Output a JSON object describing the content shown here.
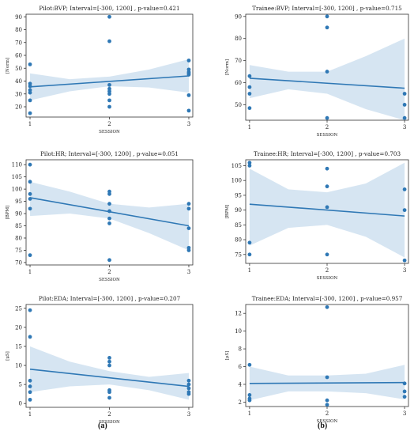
{
  "colors": {
    "line": "#2f78b5",
    "band": "#c8dcee",
    "point": "#2f78b5",
    "axis": "#333333"
  },
  "panel_labels": [
    "(a)",
    "(b)"
  ],
  "chart_data": [
    {
      "type": "scatter",
      "title": "Pilot:BVP; Interval=[-300, 1200] , p-value=0.421",
      "xlabel": "SESSION",
      "ylabel": "[Norm]",
      "xlim": [
        0.95,
        3.05
      ],
      "ylim": [
        12,
        92
      ],
      "xticks": [
        1,
        2,
        3
      ],
      "yticks": [
        20,
        30,
        40,
        50,
        60,
        70,
        80,
        90
      ],
      "points": [
        [
          1,
          53
        ],
        [
          1,
          38
        ],
        [
          1,
          36
        ],
        [
          1,
          33
        ],
        [
          1,
          31
        ],
        [
          1,
          25
        ],
        [
          1,
          15
        ],
        [
          2,
          90
        ],
        [
          2,
          71
        ],
        [
          2,
          37
        ],
        [
          2,
          34
        ],
        [
          2,
          32
        ],
        [
          2,
          30
        ],
        [
          2,
          25
        ],
        [
          2,
          20
        ],
        [
          3,
          56
        ],
        [
          3,
          49
        ],
        [
          3,
          47
        ],
        [
          3,
          46
        ],
        [
          3,
          45
        ],
        [
          3,
          29
        ],
        [
          3,
          17
        ]
      ],
      "regression": [
        [
          1,
          35.5
        ],
        [
          3,
          44
        ]
      ],
      "band_upper": [
        [
          1,
          46
        ],
        [
          1.5,
          41.5
        ],
        [
          2,
          43.5
        ],
        [
          2.5,
          49
        ],
        [
          3,
          57
        ]
      ],
      "band_lower": [
        [
          1,
          25
        ],
        [
          1.5,
          32
        ],
        [
          2,
          36
        ],
        [
          2.5,
          35
        ],
        [
          3,
          31
        ]
      ]
    },
    {
      "type": "scatter",
      "title": "Trainee:BVP; Interval=[-300, 1200] , p-value=0.715",
      "xlabel": "SESSION",
      "ylabel": "[Norm]",
      "xlim": [
        0.95,
        3.05
      ],
      "ylim": [
        43,
        91
      ],
      "xticks": [
        1,
        2,
        3
      ],
      "yticks": [
        50,
        60,
        70,
        80,
        90
      ],
      "points": [
        [
          1,
          63
        ],
        [
          1,
          58
        ],
        [
          1,
          55
        ],
        [
          1,
          48.5
        ],
        [
          2,
          90
        ],
        [
          2,
          85
        ],
        [
          2,
          65
        ],
        [
          2,
          44
        ],
        [
          3,
          55
        ],
        [
          3,
          50
        ],
        [
          3,
          44
        ]
      ],
      "regression": [
        [
          1,
          62
        ],
        [
          3,
          57.5
        ]
      ],
      "band_upper": [
        [
          1,
          68
        ],
        [
          1.5,
          65
        ],
        [
          2,
          65
        ],
        [
          2.5,
          72
        ],
        [
          3,
          80
        ]
      ],
      "band_lower": [
        [
          1,
          53
        ],
        [
          1.5,
          57
        ],
        [
          2,
          55
        ],
        [
          2.5,
          48
        ],
        [
          3,
          43
        ]
      ]
    },
    {
      "type": "scatter",
      "title": "Pilot:HR; Interval=[-300, 1200] , p-value=0.051",
      "xlabel": "SESSION",
      "ylabel": "[BPM]",
      "xlim": [
        0.95,
        3.05
      ],
      "ylim": [
        69,
        112
      ],
      "xticks": [
        1,
        2,
        3
      ],
      "yticks": [
        70,
        75,
        80,
        85,
        90,
        95,
        100,
        105,
        110
      ],
      "points": [
        [
          1,
          110
        ],
        [
          1,
          103
        ],
        [
          1,
          98
        ],
        [
          1,
          96
        ],
        [
          1,
          92
        ],
        [
          1,
          73
        ],
        [
          2,
          99
        ],
        [
          2,
          98
        ],
        [
          2,
          94
        ],
        [
          2,
          91
        ],
        [
          2,
          88
        ],
        [
          2,
          86
        ],
        [
          2,
          71
        ],
        [
          3,
          94
        ],
        [
          3,
          92
        ],
        [
          3,
          84
        ],
        [
          3,
          76
        ],
        [
          3,
          75
        ]
      ],
      "regression": [
        [
          1,
          96.5
        ],
        [
          3,
          85
        ]
      ],
      "band_upper": [
        [
          1,
          103
        ],
        [
          1.5,
          99
        ],
        [
          2,
          94
        ],
        [
          2.5,
          92.5
        ],
        [
          3,
          94
        ]
      ],
      "band_lower": [
        [
          1,
          89
        ],
        [
          1.5,
          90
        ],
        [
          2,
          88
        ],
        [
          2.5,
          82
        ],
        [
          3,
          75
        ]
      ]
    },
    {
      "type": "scatter",
      "title": "Trainee:HR; Interval=[-300, 1200] , p-value=0.703",
      "xlabel": "SESSION",
      "ylabel": "[BPM]",
      "xlim": [
        0.95,
        3.05
      ],
      "ylim": [
        72,
        107
      ],
      "xticks": [
        1,
        2,
        3
      ],
      "yticks": [
        75,
        80,
        85,
        90,
        95,
        100,
        105
      ],
      "points": [
        [
          1,
          106
        ],
        [
          1,
          105
        ],
        [
          1,
          79
        ],
        [
          1,
          75
        ],
        [
          2,
          104
        ],
        [
          2,
          98
        ],
        [
          2,
          91
        ],
        [
          2,
          75
        ],
        [
          3,
          97
        ],
        [
          3,
          90
        ],
        [
          3,
          73
        ]
      ],
      "regression": [
        [
          1,
          92
        ],
        [
          3,
          88
        ]
      ],
      "band_upper": [
        [
          1,
          104
        ],
        [
          1.5,
          97
        ],
        [
          2,
          96
        ],
        [
          2.5,
          99
        ],
        [
          3,
          106
        ]
      ],
      "band_lower": [
        [
          1,
          78
        ],
        [
          1.5,
          84
        ],
        [
          2,
          85
        ],
        [
          2.5,
          81
        ],
        [
          3,
          74
        ]
      ]
    },
    {
      "type": "scatter",
      "title": "Pilot:EDA; Interval=[-300, 1200] , p-value=0.207",
      "xlabel": "SESSION",
      "ylabel": "[μS]",
      "xlim": [
        0.95,
        3.05
      ],
      "ylim": [
        -1,
        26
      ],
      "xticks": [
        1,
        2,
        3
      ],
      "yticks": [
        0,
        5,
        10,
        15,
        20,
        25
      ],
      "points": [
        [
          1,
          24.5
        ],
        [
          1,
          17.5
        ],
        [
          1,
          6
        ],
        [
          1,
          4.5
        ],
        [
          1,
          3
        ],
        [
          1,
          1
        ],
        [
          2,
          12
        ],
        [
          2,
          11
        ],
        [
          2,
          10
        ],
        [
          2,
          3.5
        ],
        [
          2,
          3
        ],
        [
          2,
          1.5
        ],
        [
          3,
          6
        ],
        [
          3,
          5
        ],
        [
          3,
          4
        ],
        [
          3,
          3
        ],
        [
          3,
          2.5
        ]
      ],
      "regression": [
        [
          1,
          9
        ],
        [
          3,
          4.5
        ]
      ],
      "band_upper": [
        [
          1,
          15
        ],
        [
          1.5,
          11
        ],
        [
          2,
          8.5
        ],
        [
          2.5,
          7
        ],
        [
          3,
          8
        ]
      ],
      "band_lower": [
        [
          1,
          3
        ],
        [
          1.5,
          4.5
        ],
        [
          2,
          5
        ],
        [
          2.5,
          3.5
        ],
        [
          3,
          1
        ]
      ]
    },
    {
      "type": "scatter",
      "title": "Trainee:EDA; Interval=[-300, 1200] , p-value=0.957",
      "xlabel": "SESSION",
      "ylabel": "[μS]",
      "xlim": [
        0.95,
        3.05
      ],
      "ylim": [
        1.5,
        13
      ],
      "xticks": [
        1,
        2,
        3
      ],
      "yticks": [
        2,
        4,
        6,
        8,
        10,
        12
      ],
      "points": [
        [
          1,
          6.2
        ],
        [
          1,
          2.8
        ],
        [
          1,
          2.4
        ],
        [
          1,
          2.2
        ],
        [
          2,
          12.7
        ],
        [
          2,
          4.8
        ],
        [
          2,
          2.2
        ],
        [
          2,
          1.7
        ],
        [
          3,
          4.1
        ],
        [
          3,
          3.2
        ],
        [
          3,
          2.6
        ]
      ],
      "regression": [
        [
          1,
          4.1
        ],
        [
          3,
          4.2
        ]
      ],
      "band_upper": [
        [
          1,
          6
        ],
        [
          1.5,
          5
        ],
        [
          2,
          5
        ],
        [
          2.5,
          5.2
        ],
        [
          3,
          6.2
        ]
      ],
      "band_lower": [
        [
          1,
          2.2
        ],
        [
          1.5,
          3.2
        ],
        [
          2,
          3.2
        ],
        [
          2.5,
          3
        ],
        [
          3,
          2.3
        ]
      ]
    }
  ]
}
